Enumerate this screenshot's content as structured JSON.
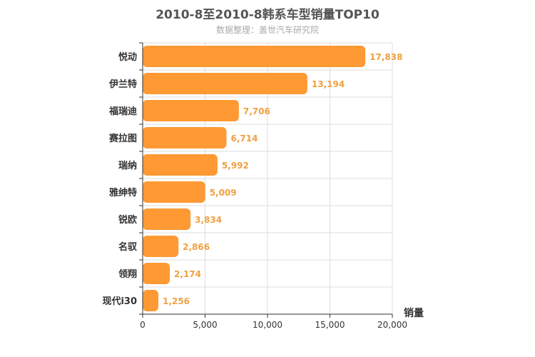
{
  "chart_data": {
    "type": "bar",
    "orientation": "horizontal",
    "title": "2010-8至2010-8韩系车型销量TOP10",
    "subtitle": "数据整理：盖世汽车研究院",
    "xlabel": "销量",
    "xlim": [
      0,
      20000
    ],
    "xticks": [
      "0",
      "5,000",
      "10,000",
      "15,000",
      "20,000"
    ],
    "grid": true,
    "categories": [
      "悦动",
      "伊兰特",
      "福瑞迪",
      "赛拉图",
      "瑞纳",
      "雅绅特",
      "锐欧",
      "名驭",
      "领翔",
      "现代i30"
    ],
    "values": [
      17838,
      13194,
      7706,
      6714,
      5992,
      5009,
      3834,
      2866,
      2174,
      1256
    ],
    "value_labels": [
      "17,838",
      "13,194",
      "7,706",
      "6,714",
      "5,992",
      "5,009",
      "3,834",
      "2,866",
      "2,174",
      "1,256"
    ],
    "bar_color": "#ff9933",
    "label_color": "#f0a040"
  }
}
